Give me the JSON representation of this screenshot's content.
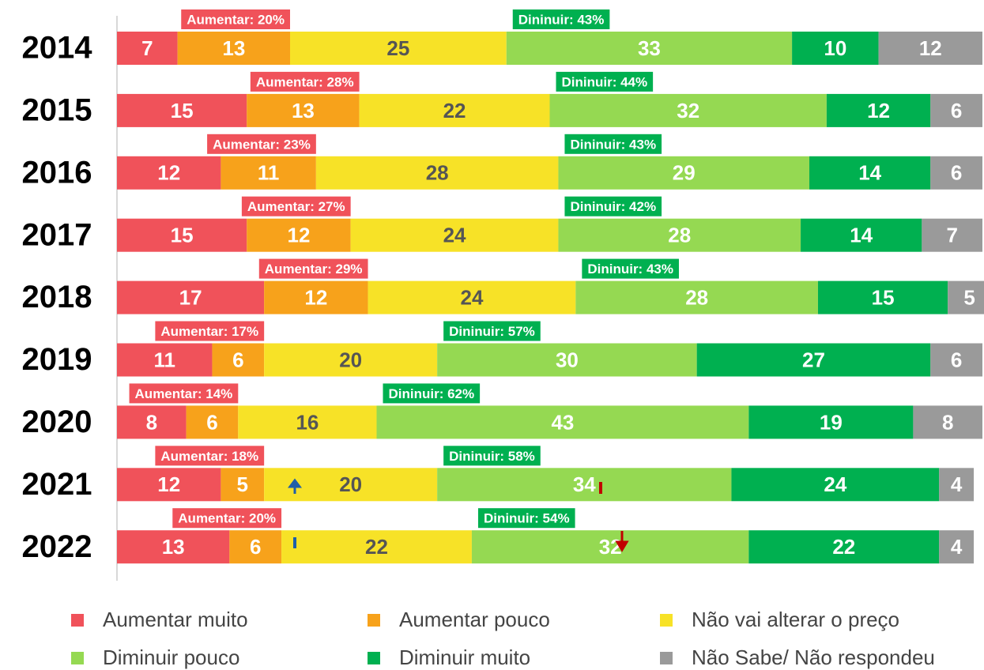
{
  "chart_data": {
    "type": "bar",
    "orientation": "horizontal",
    "stacked": true,
    "categories": [
      "2014",
      "2015",
      "2016",
      "2017",
      "2018",
      "2019",
      "2020",
      "2021",
      "2022"
    ],
    "series": [
      {
        "name": "Aumentar muito",
        "color": "#f0525a",
        "values": [
          7,
          15,
          12,
          15,
          17,
          11,
          8,
          12,
          13
        ]
      },
      {
        "name": "Aumentar pouco",
        "color": "#f7a21b",
        "values": [
          13,
          13,
          11,
          12,
          12,
          6,
          6,
          5,
          6
        ]
      },
      {
        "name": "Não vai alterar o preço",
        "color": "#f7e227",
        "values": [
          25,
          22,
          28,
          24,
          24,
          20,
          16,
          20,
          22
        ]
      },
      {
        "name": "Diminuir pouco",
        "color": "#95d952",
        "values": [
          33,
          32,
          29,
          28,
          28,
          30,
          43,
          34,
          32
        ]
      },
      {
        "name": "Diminuir muito",
        "color": "#00b050",
        "values": [
          10,
          12,
          14,
          14,
          15,
          27,
          19,
          24,
          22
        ]
      },
      {
        "name": "Não Sabe/ Não respondeu",
        "color": "#9a9a9a",
        "values": [
          12,
          6,
          6,
          7,
          5,
          6,
          8,
          4,
          4
        ]
      }
    ],
    "increase_labels": [
      "Aumentar: 20%",
      "Aumentar: 28%",
      "Aumentar: 23%",
      "Aumentar: 27%",
      "Aumentar: 29%",
      "Aumentar: 17%",
      "Aumentar: 14%",
      "Aumentar: 18%",
      "Aumentar: 20%"
    ],
    "decrease_labels": [
      "Dininuir: 43%",
      "Dininuir: 44%",
      "Dininuir: 43%",
      "Dininuir: 42%",
      "Dininuir: 43%",
      "Dininuir: 57%",
      "Dininuir: 62%",
      "Dininuir: 58%",
      "Dininuir: 54%"
    ],
    "legend": "bottom"
  }
}
